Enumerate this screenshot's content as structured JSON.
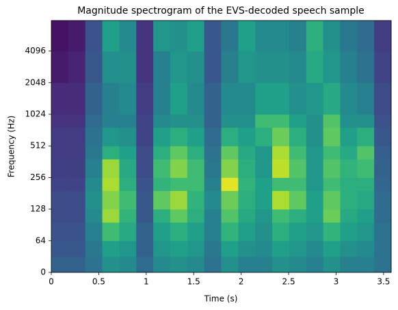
{
  "chart_data": {
    "type": "heatmap",
    "title": "Magnitude spectrogram of the EVS-decoded speech sample",
    "x_label": "Time (s)",
    "y_label": "Frequency (Hz)",
    "xlim": [
      0,
      3.58
    ],
    "ylim": [
      0,
      8000
    ],
    "yscale": "symlog",
    "linthresh": 64,
    "xticks": [
      0,
      0.5,
      1,
      1.5,
      2,
      2.5,
      3,
      3.5
    ],
    "yticks": [
      0,
      64,
      128,
      256,
      512,
      1024,
      2048,
      4096
    ],
    "colormap": "viridis",
    "zlim": [
      -80,
      0
    ],
    "x_edges": [
      0,
      0.179,
      0.358,
      0.537,
      0.716,
      0.895,
      1.074,
      1.253,
      1.432,
      1.611,
      1.79,
      1.969,
      2.148,
      2.327,
      2.506,
      2.685,
      2.864,
      3.043,
      3.222,
      3.401,
      3.58
    ],
    "y_edges": [
      0,
      32,
      64,
      96,
      128,
      192,
      256,
      384,
      512,
      768,
      1024,
      2048,
      4096,
      8000
    ],
    "z": [
      [
        -55,
        -55,
        -50,
        -40,
        -42,
        -52,
        -42,
        -40,
        -42,
        -50,
        -40,
        -45,
        -45,
        -40,
        -42,
        -45,
        -40,
        -45,
        -45,
        -50
      ],
      [
        -58,
        -58,
        -48,
        -35,
        -38,
        -55,
        -38,
        -35,
        -38,
        -48,
        -35,
        -40,
        -42,
        -35,
        -38,
        -42,
        -35,
        -40,
        -42,
        -50
      ],
      [
        -60,
        -60,
        -45,
        -25,
        -32,
        -55,
        -35,
        -30,
        -35,
        -45,
        -28,
        -35,
        -40,
        -30,
        -35,
        -38,
        -28,
        -35,
        -38,
        -50
      ],
      [
        -62,
        -62,
        -42,
        -12,
        -28,
        -58,
        -30,
        -20,
        -30,
        -45,
        -22,
        -32,
        -38,
        -25,
        -30,
        -35,
        -18,
        -32,
        -35,
        -52
      ],
      [
        -62,
        -62,
        -40,
        -15,
        -25,
        -58,
        -20,
        -12,
        -28,
        -42,
        -18,
        -30,
        -35,
        -10,
        -20,
        -35,
        -20,
        -30,
        -32,
        -52
      ],
      [
        -64,
        -64,
        -42,
        -10,
        -30,
        -60,
        -28,
        -25,
        -25,
        -45,
        -3,
        -28,
        -35,
        -25,
        -25,
        -38,
        -25,
        -30,
        -30,
        -54
      ],
      [
        -65,
        -65,
        -45,
        -12,
        -32,
        -62,
        -25,
        -15,
        -25,
        -48,
        -15,
        -30,
        -38,
        -8,
        -22,
        -38,
        -22,
        -28,
        -25,
        -55
      ],
      [
        -66,
        -66,
        -48,
        -30,
        -35,
        -62,
        -30,
        -20,
        -30,
        -50,
        -20,
        -32,
        -38,
        -10,
        -25,
        -38,
        -25,
        -32,
        -22,
        -56
      ],
      [
        -66,
        -66,
        -50,
        -38,
        -40,
        -64,
        -35,
        -30,
        -35,
        -52,
        -30,
        -35,
        -30,
        -18,
        -30,
        -40,
        -20,
        -35,
        -30,
        -58
      ],
      [
        -68,
        -68,
        -52,
        -45,
        -45,
        -64,
        -42,
        -40,
        -40,
        -55,
        -40,
        -40,
        -25,
        -25,
        -35,
        -40,
        -22,
        -40,
        -40,
        -60
      ],
      [
        -70,
        -70,
        -55,
        -45,
        -42,
        -66,
        -45,
        -35,
        -42,
        -55,
        -42,
        -42,
        -35,
        -35,
        -40,
        -38,
        -32,
        -42,
        -45,
        -62
      ],
      [
        -74,
        -72,
        -58,
        -40,
        -40,
        -68,
        -45,
        -38,
        -40,
        -58,
        -45,
        -38,
        -40,
        -40,
        -42,
        -32,
        -38,
        -45,
        -50,
        -64
      ],
      [
        -76,
        -74,
        -60,
        -35,
        -42,
        -68,
        -38,
        -40,
        -35,
        -58,
        -48,
        -35,
        -42,
        -42,
        -45,
        -30,
        -40,
        -48,
        -52,
        -66
      ]
    ]
  }
}
